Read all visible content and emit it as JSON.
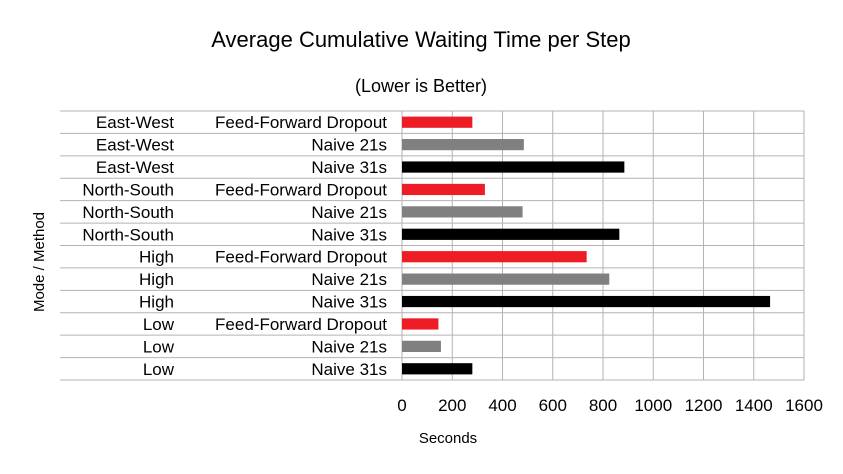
{
  "chart_data": {
    "type": "bar",
    "orientation": "horizontal",
    "title": "Average Cumulative Waiting Time per Step",
    "subtitle": "(Lower is Better)",
    "xlabel": "Seconds",
    "ylabel": "Mode / Method",
    "xlim": [
      0,
      1600
    ],
    "xticks": [
      "0",
      "200",
      "400",
      "600",
      "800",
      "1000",
      "1200",
      "1400",
      "1600"
    ],
    "grid": true,
    "legend": "none",
    "categories": [
      {
        "mode": "East-West",
        "method": "Feed-Forward Dropout"
      },
      {
        "mode": "East-West",
        "method": "Naive 21s"
      },
      {
        "mode": "East-West",
        "method": "Naive 31s"
      },
      {
        "mode": "North-South",
        "method": "Feed-Forward Dropout"
      },
      {
        "mode": "North-South",
        "method": "Naive 21s"
      },
      {
        "mode": "North-South",
        "method": "Naive 31s"
      },
      {
        "mode": "High",
        "method": "Feed-Forward Dropout"
      },
      {
        "mode": "High",
        "method": "Naive 21s"
      },
      {
        "mode": "High",
        "method": "Naive 31s"
      },
      {
        "mode": "Low",
        "method": "Feed-Forward Dropout"
      },
      {
        "mode": "Low",
        "method": "Naive 21s"
      },
      {
        "mode": "Low",
        "method": "Naive 31s"
      }
    ],
    "values": [
      280,
      485,
      885,
      330,
      480,
      865,
      735,
      825,
      1465,
      145,
      155,
      280
    ],
    "colors": {
      "Feed-Forward Dropout": "#ee1c25",
      "Naive 21s": "#808080",
      "Naive 31s": "#000000"
    }
  }
}
